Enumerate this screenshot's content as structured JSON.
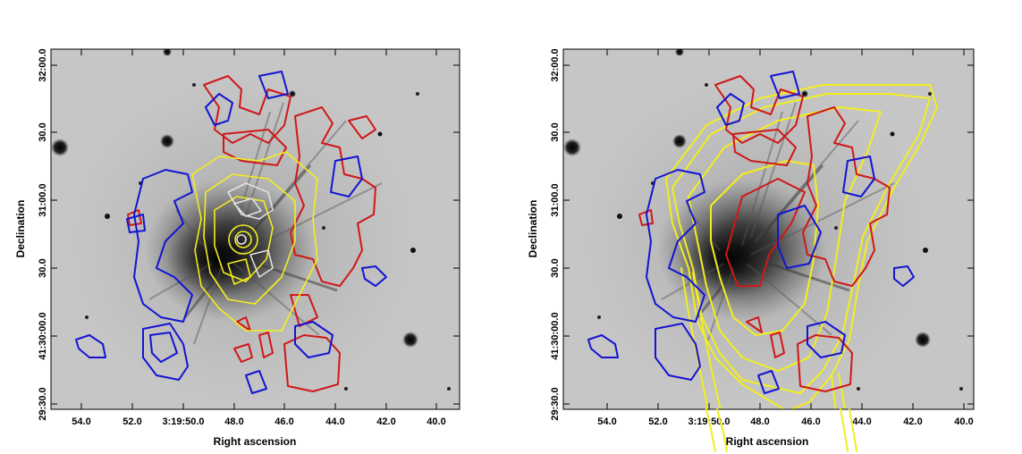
{
  "panels": [
    {
      "id": "left",
      "xlabel": "Right ascension",
      "ylabel": "Declination",
      "xticks": [
        "54.0",
        "52.0",
        "3:19:50.0",
        "48.0",
        "46.0",
        "44.0",
        "42.0",
        "40.0"
      ],
      "yticks": [
        "32:00.0",
        "30.0",
        "31:00.0",
        "30.0",
        "41:30:00.0",
        "29:30.0"
      ],
      "contour_colors": [
        "#d01818",
        "#1414d2",
        "#f2ee1e",
        "#e2e2e2"
      ]
    },
    {
      "id": "right",
      "xlabel": "Right ascension",
      "ylabel": "Declination",
      "xticks": [
        "54.0",
        "52.0",
        "3:19:50.0",
        "48.0",
        "46.0",
        "44.0",
        "42.0",
        "40.0"
      ],
      "yticks": [
        "32:00.0",
        "30.0",
        "31:00.0",
        "30.0",
        "41:30:00.0",
        "29:30.0"
      ],
      "contour_colors": [
        "#d01818",
        "#1414d2",
        "#f2ee1e"
      ]
    }
  ],
  "colors": {
    "red": "#d01818",
    "blue": "#1414d2",
    "yellow": "#f2ee1e",
    "white": "#e2e2e2",
    "background": "#c6c6c6"
  }
}
